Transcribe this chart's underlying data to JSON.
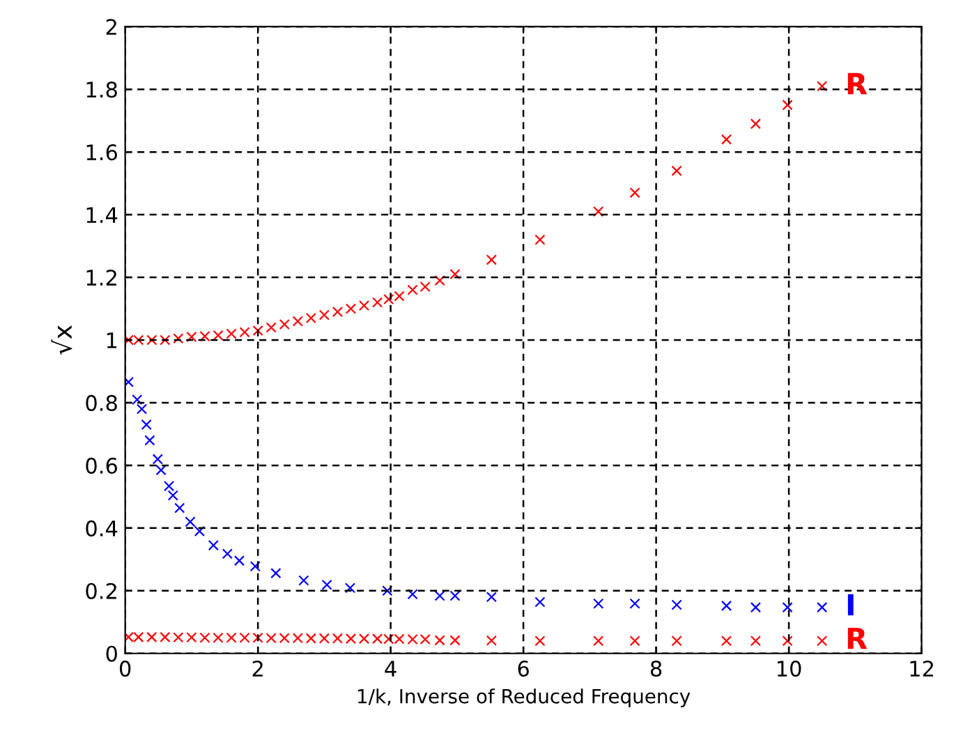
{
  "chart_data": {
    "type": "scatter",
    "xlabel": "1/k, Inverse of Reduced Frequency",
    "ylabel": "√x",
    "marker": "cross",
    "grid": true,
    "legend": false,
    "xlim": [
      0,
      12
    ],
    "ylim": [
      0,
      2
    ],
    "xticks": [
      0,
      2,
      4,
      6,
      8,
      10,
      12
    ],
    "yticks": [
      0,
      0.2,
      0.4,
      0.6,
      0.8,
      1,
      1.2,
      1.4,
      1.6,
      1.8,
      2
    ],
    "series": [
      {
        "name": "R",
        "color": "#ff0000",
        "x": [
          0.05,
          0.2,
          0.4,
          0.6,
          0.8,
          1.0,
          1.2,
          1.4,
          1.6,
          1.8,
          2.0,
          2.2,
          2.4,
          2.6,
          2.8,
          3.0,
          3.2,
          3.4,
          3.6,
          3.8,
          3.97,
          4.13,
          4.33,
          4.52,
          4.74,
          4.97,
          5.52,
          6.25,
          7.13,
          7.68,
          8.31,
          9.06,
          9.5,
          9.98,
          10.5
        ],
        "values": [
          1.0,
          1.0,
          1.0,
          1.0,
          1.005,
          1.01,
          1.012,
          1.015,
          1.02,
          1.025,
          1.03,
          1.04,
          1.05,
          1.06,
          1.07,
          1.08,
          1.09,
          1.1,
          1.11,
          1.12,
          1.13,
          1.14,
          1.16,
          1.17,
          1.19,
          1.21,
          1.256,
          1.32,
          1.41,
          1.47,
          1.54,
          1.64,
          1.69,
          1.75,
          1.81
        ]
      },
      {
        "name": "I",
        "color": "#0000ff",
        "x": [
          0.05,
          0.18,
          0.25,
          0.32,
          0.37,
          0.49,
          0.54,
          0.66,
          0.72,
          0.82,
          0.98,
          1.12,
          1.33,
          1.54,
          1.72,
          1.96,
          2.27,
          2.69,
          3.04,
          3.39,
          3.95,
          4.33,
          4.74,
          4.97,
          5.52,
          6.25,
          7.13,
          7.68,
          8.31,
          9.06,
          9.5,
          9.98,
          10.5
        ],
        "values": [
          0.866,
          0.81,
          0.78,
          0.73,
          0.68,
          0.62,
          0.585,
          0.534,
          0.504,
          0.464,
          0.42,
          0.39,
          0.345,
          0.318,
          0.296,
          0.278,
          0.256,
          0.233,
          0.219,
          0.209,
          0.2,
          0.189,
          0.184,
          0.184,
          0.18,
          0.164,
          0.159,
          0.159,
          0.155,
          0.152,
          0.147,
          0.147,
          0.147
        ]
      },
      {
        "name": "R",
        "color": "#ff0000",
        "x": [
          0.05,
          0.2,
          0.4,
          0.6,
          0.8,
          1.0,
          1.2,
          1.4,
          1.6,
          1.8,
          2.0,
          2.2,
          2.4,
          2.6,
          2.8,
          3.0,
          3.2,
          3.4,
          3.6,
          3.8,
          3.97,
          4.13,
          4.33,
          4.52,
          4.74,
          4.97,
          5.52,
          6.25,
          7.13,
          7.68,
          8.31,
          9.06,
          9.5,
          9.98,
          10.5
        ],
        "values": [
          0.052,
          0.052,
          0.052,
          0.052,
          0.051,
          0.051,
          0.05,
          0.05,
          0.05,
          0.05,
          0.05,
          0.049,
          0.049,
          0.049,
          0.048,
          0.048,
          0.048,
          0.047,
          0.047,
          0.047,
          0.046,
          0.046,
          0.045,
          0.045,
          0.042,
          0.042,
          0.041,
          0.04,
          0.04,
          0.04,
          0.04,
          0.04,
          0.04,
          0.04,
          0.04
        ]
      }
    ]
  }
}
